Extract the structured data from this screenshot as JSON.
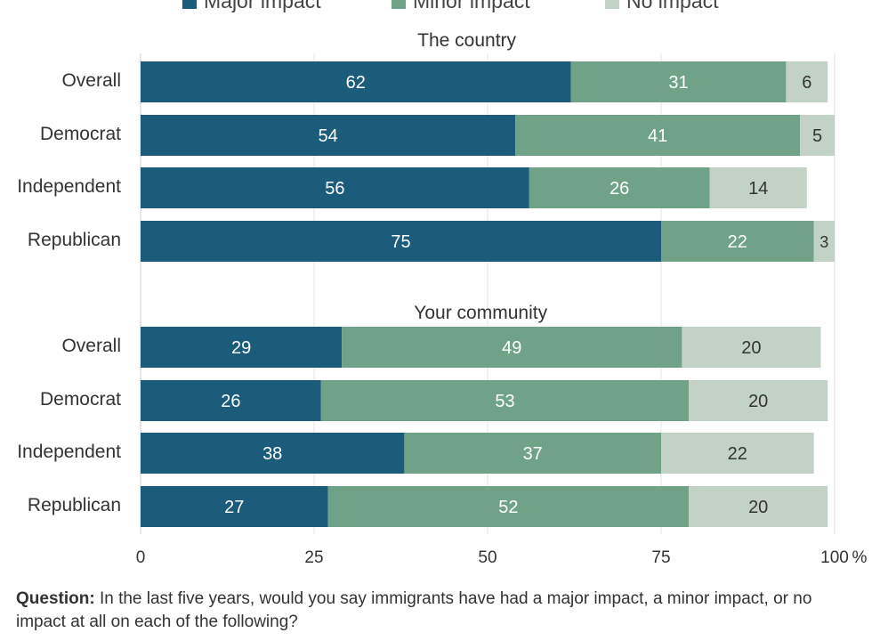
{
  "chart_data": {
    "type": "bar",
    "orientation": "horizontal-stacked",
    "legend": [
      {
        "name": "Major impact",
        "color": "#1a5c7a"
      },
      {
        "name": "Minor impact",
        "color": "#6fa287"
      },
      {
        "name": "No impact",
        "color": "#c2d2c6"
      }
    ],
    "legend_placement": "top",
    "x_ticks": [
      "0",
      "25",
      "50",
      "75",
      "100"
    ],
    "x_unit": "%",
    "xlim": [
      0,
      100
    ],
    "grid": true,
    "panels": [
      {
        "title": "The country",
        "categories": [
          "Overall",
          "Democrat",
          "Independent",
          "Republican"
        ],
        "series": [
          {
            "name": "Major impact",
            "values": [
              62,
              54,
              56,
              75
            ]
          },
          {
            "name": "Minor impact",
            "values": [
              31,
              41,
              26,
              22
            ]
          },
          {
            "name": "No impact",
            "values": [
              6,
              5,
              14,
              3
            ]
          }
        ]
      },
      {
        "title": "Your community",
        "categories": [
          "Overall",
          "Democrat",
          "Independent",
          "Republican"
        ],
        "series": [
          {
            "name": "Major impact",
            "values": [
              29,
              26,
              38,
              27
            ]
          },
          {
            "name": "Minor impact",
            "values": [
              49,
              53,
              37,
              52
            ]
          },
          {
            "name": "No impact",
            "values": [
              20,
              20,
              22,
              20
            ]
          }
        ]
      }
    ]
  },
  "footer": {
    "question_label": "Question:",
    "question_text": " In the last five years, would you say immigrants have had a major impact, a minor impact, or no impact at all on each of the following?"
  }
}
